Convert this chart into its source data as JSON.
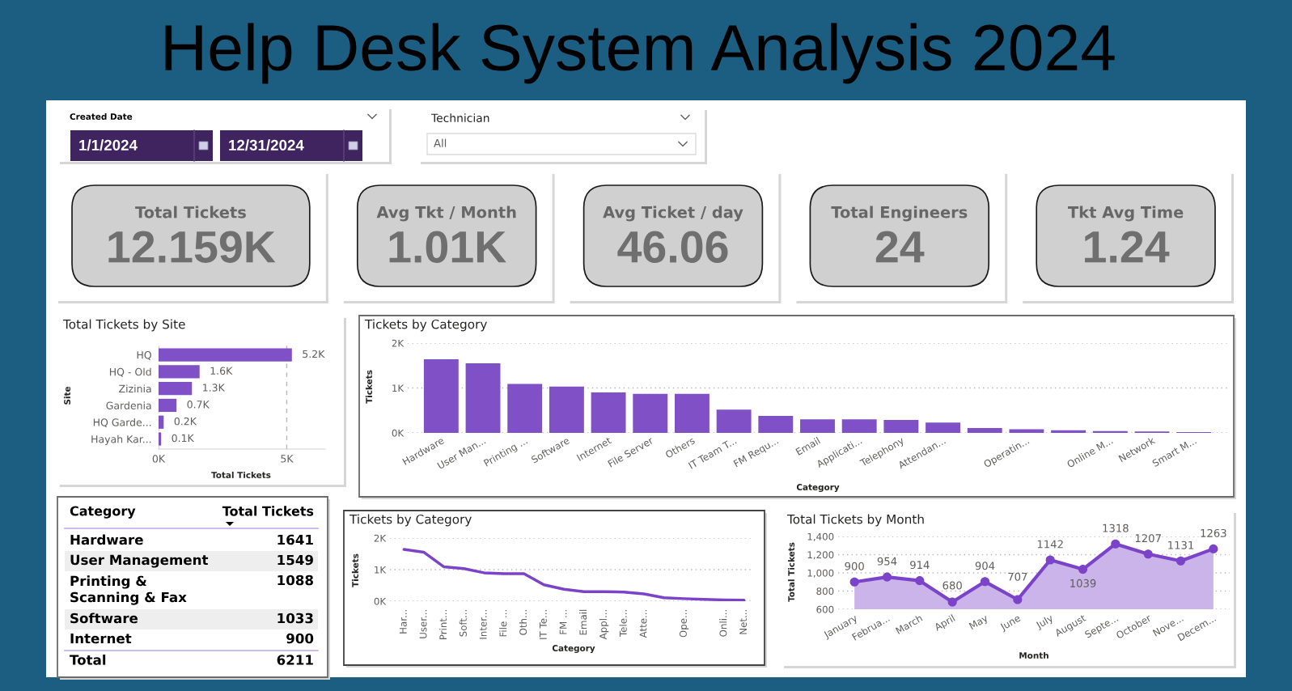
{
  "chart_data": [
    {
      "type": "other",
      "title": "Help Desk System Analysis 2024"
    },
    {
      "type": "other",
      "title": "Created Date",
      "categories": [
        "1/1/2024",
        "12/31/2024"
      ]
    },
    {
      "type": "other",
      "title": "Technician",
      "categories": [
        "All"
      ]
    },
    {
      "type": "other",
      "categories": [
        "Total Tickets",
        "Avg Tkt / Month",
        "Avg Ticket / day",
        "Total Engineers",
        "Tkt Avg Time"
      ],
      "value_labels": [
        "12.159K",
        "1.01K",
        "46.06",
        "24",
        "1.24"
      ]
    },
    {
      "type": "bar",
      "orientation": "horizontal",
      "title": "Total Tickets by Site",
      "xlabel": "Total Tickets",
      "ylabel": "Site",
      "categories": [
        "HQ",
        "HQ - Old",
        "Zizinia",
        "Gardenia",
        "HQ Garde...",
        "Hayah Kar..."
      ],
      "values": [
        5200,
        1600,
        1300,
        700,
        200,
        100
      ],
      "value_labels": [
        "5.2K",
        "1.6K",
        "1.3K",
        "0.7K",
        "0.2K",
        "0.1K"
      ],
      "color": "#8051c6",
      "xlim": [
        0,
        6500
      ],
      "xticks": [
        {
          "value": 0,
          "label": "0K"
        },
        {
          "value": 5000,
          "label": "5K"
        }
      ],
      "grid": "x"
    },
    {
      "type": "bar",
      "title": "Tickets by Category",
      "xlabel": "Category",
      "ylabel": "Tickets",
      "categories": [
        "Hardware",
        "User Man...",
        "Printing ...",
        "Software",
        "Internet",
        "File Server",
        "Others",
        "IT Team T...",
        "FM Requ...",
        "Email",
        "Applicati...",
        "Telephony",
        "Attendan...",
        null,
        "Operatin...",
        null,
        "Online M...",
        "Network",
        "Smart M..."
      ],
      "values": [
        1641,
        1549,
        1088,
        1033,
        900,
        870,
        870,
        520,
        380,
        300,
        300,
        290,
        230,
        110,
        80,
        60,
        40,
        30,
        20
      ],
      "color": "#8051c6",
      "ylim": [
        0,
        2000
      ],
      "yticks": [
        {
          "value": 0,
          "label": "0K"
        },
        {
          "value": 1000,
          "label": "1K"
        },
        {
          "value": 2000,
          "label": "2K"
        }
      ],
      "grid": "y"
    },
    {
      "type": "other",
      "xlabel": "Category",
      "ylabel": "Total Tickets",
      "categories": [
        "Hardware",
        "User Management",
        "Printing &\nScanning & Fax",
        "Software",
        "Internet"
      ],
      "values": [
        1641,
        1549,
        1088,
        1033,
        900
      ],
      "data_labels": true,
      "annotations": [
        "Total"
      ],
      "totals": [
        "6211"
      ]
    },
    {
      "type": "line",
      "title": "Tickets by Category",
      "xlabel": "Category",
      "ylabel": "Tickets",
      "categories": [
        "Har...",
        "User...",
        "Print...",
        "Soft...",
        "Inter...",
        "File ...",
        "Oth...",
        "IT Te...",
        "FM ...",
        "Email",
        "Appl...",
        "Tele...",
        "Atte...",
        null,
        "Ope...",
        null,
        "Onli...",
        "Net..."
      ],
      "values": [
        1641,
        1549,
        1088,
        1033,
        900,
        870,
        870,
        520,
        380,
        300,
        300,
        290,
        230,
        110,
        80,
        60,
        40,
        30
      ],
      "color": "#7b43c9",
      "ylim": [
        0,
        2000
      ],
      "yticks": [
        {
          "value": 0,
          "label": "0K"
        },
        {
          "value": 1000,
          "label": "1K"
        },
        {
          "value": 2000,
          "label": "2K"
        }
      ],
      "grid": "y"
    },
    {
      "type": "area",
      "title": "Total Tickets by Month",
      "xlabel": "Month",
      "ylabel": "Total Tickets",
      "categories": [
        "January",
        "Februa...",
        "March",
        "April",
        "May",
        "June",
        "July",
        "August",
        "Septe...",
        "October",
        "Nove...",
        "Decem..."
      ],
      "values": [
        900,
        954,
        914,
        680,
        904,
        707,
        1142,
        1039,
        1318,
        1207,
        1131,
        1263
      ],
      "color": "#7b43c9",
      "ylim": [
        600,
        1400
      ],
      "yticks": [
        600,
        800,
        {
          "value": 1000,
          "label": "1,000"
        },
        {
          "value": 1200,
          "label": "1,200"
        },
        {
          "value": 1400,
          "label": "1,400"
        }
      ],
      "grid": "y",
      "marker": "circle",
      "data_labels": true
    }
  ]
}
